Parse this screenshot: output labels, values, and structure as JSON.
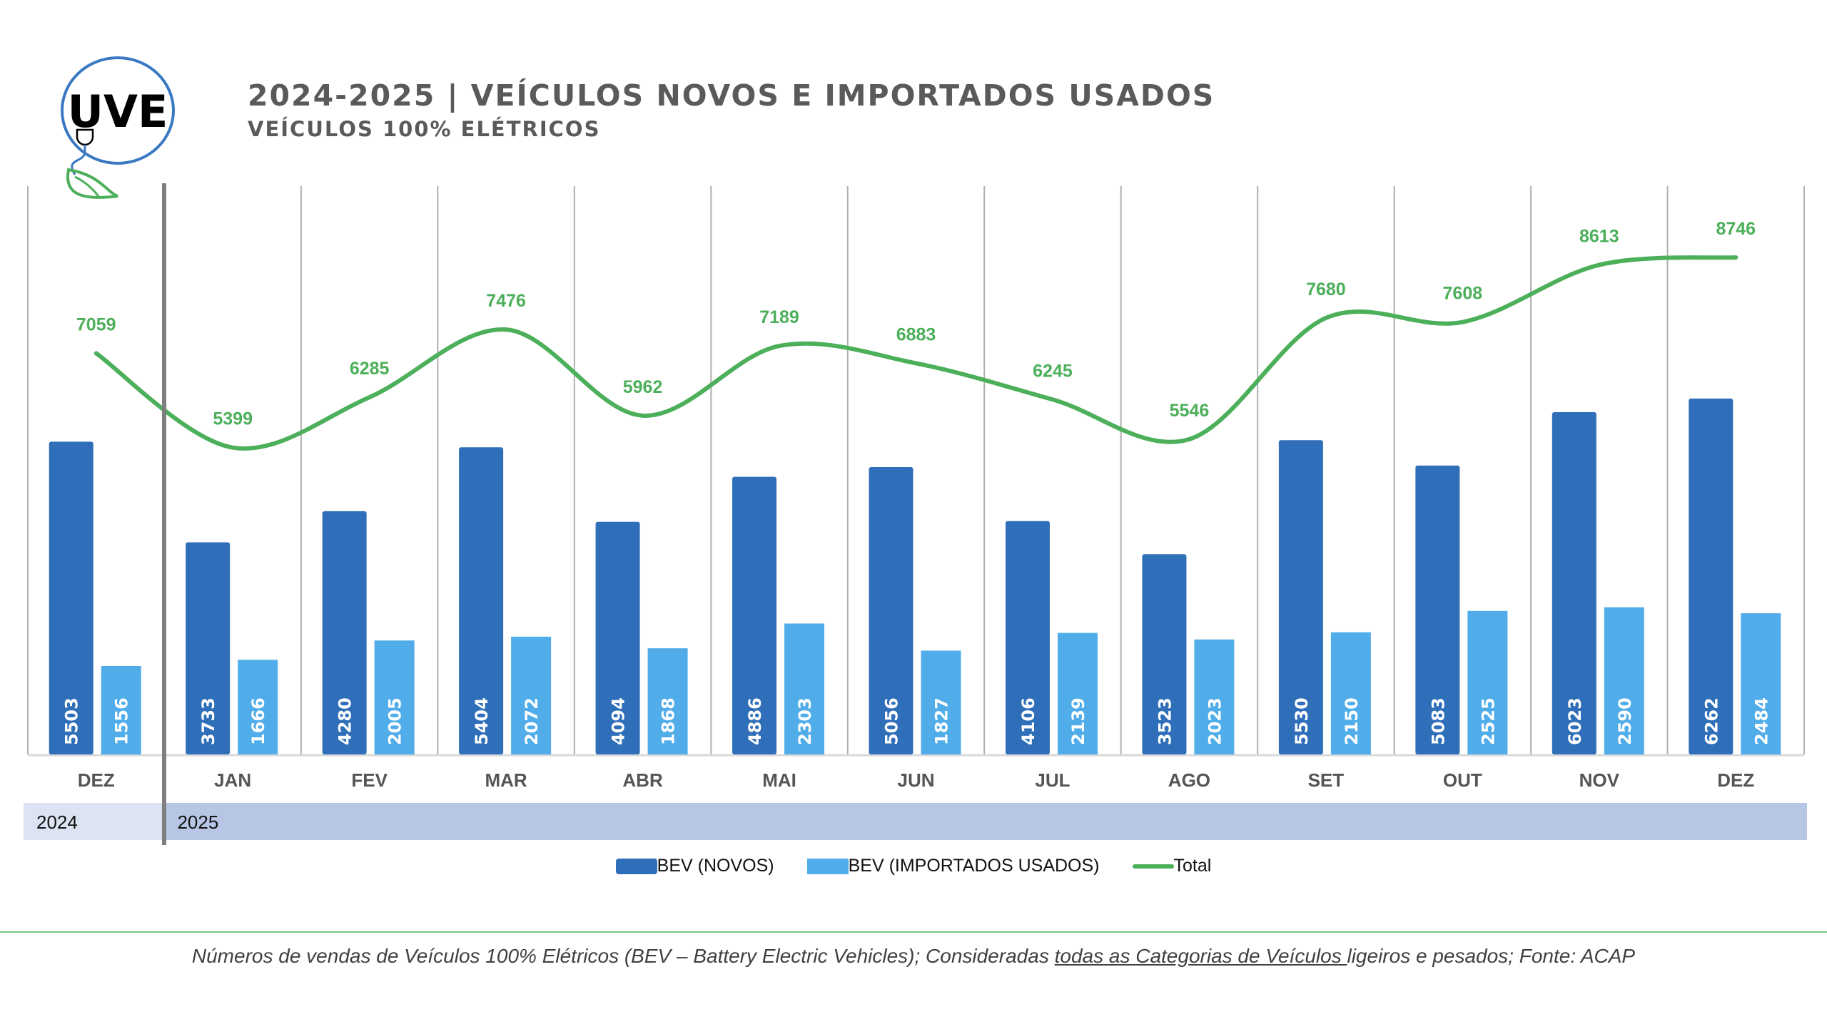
{
  "header": {
    "title": "2024-2025 | VEÍCULOS NOVOS E IMPORTADOS USADOS",
    "subtitle": "VEÍCULOS 100% ELÉTRICOS",
    "logo_text": "UVE",
    "logo_icon": "plug-leaf-logo-icon"
  },
  "colors": {
    "novos": "#2f6eb8",
    "usados": "#50adea",
    "total": "#4caf5a",
    "year_2024_band": "#dce3f3",
    "year_2025_band": "#b7c6e4",
    "title": "#5a5a5a"
  },
  "chart_data": {
    "type": "bar",
    "title": "2024-2025 | VEÍCULOS NOVOS E IMPORTADOS USADOS",
    "subtitle": "VEÍCULOS 100% ELÉTRICOS",
    "categories": [
      "DEZ",
      "JAN",
      "FEV",
      "MAR",
      "ABR",
      "MAI",
      "JUN",
      "JUL",
      "AGO",
      "SET",
      "OUT",
      "NOV",
      "DEZ"
    ],
    "year_groups": [
      {
        "label": "2024",
        "from": 0,
        "to": 0
      },
      {
        "label": "2025",
        "from": 1,
        "to": 12
      }
    ],
    "series": [
      {
        "name": "BEV (NOVOS)",
        "type": "bar",
        "values": [
          5503,
          3733,
          4280,
          5404,
          4094,
          4886,
          5056,
          4106,
          3523,
          5530,
          5083,
          6023,
          6262
        ]
      },
      {
        "name": "BEV (IMPORTADOS USADOS)",
        "type": "bar",
        "values": [
          1556,
          1666,
          2005,
          2072,
          1868,
          2303,
          1827,
          2139,
          2023,
          2150,
          2525,
          2590,
          2484
        ]
      },
      {
        "name": "Total",
        "type": "line",
        "values": [
          7059,
          5399,
          6285,
          7476,
          5962,
          7189,
          6883,
          6245,
          5546,
          7680,
          7608,
          8613,
          8746
        ]
      }
    ],
    "xlabel": "",
    "ylabel": "",
    "ylim": [
      0,
      10000
    ],
    "grid": "vertical category separators",
    "legend": "bottom-center"
  },
  "legend": {
    "items": [
      "BEV (NOVOS)",
      "BEV (IMPORTADOS USADOS)",
      "Total"
    ]
  },
  "footer": {
    "text_before": "Números de vendas de Veículos 100% Elétricos (BEV – Battery Electric Vehicles); Consideradas ",
    "text_underlined": "todas as Categorias de Veículos ",
    "text_after": "ligeiros e pesados; Fonte: ACAP"
  }
}
